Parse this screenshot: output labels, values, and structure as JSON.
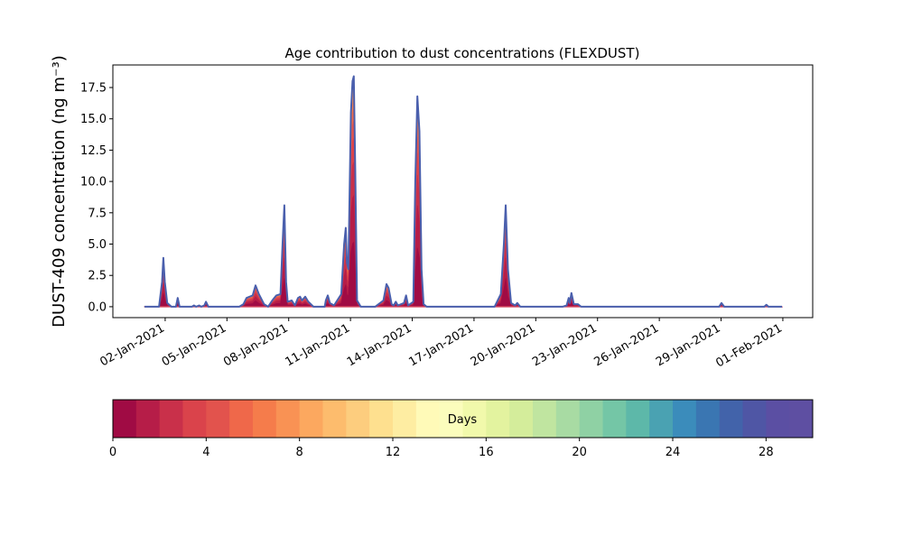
{
  "chart_data": {
    "type": "area",
    "stacked": true,
    "title": "Age contribution to dust concentrations (FLEXDUST)",
    "ylabel": "DUST-409 concentration (ng m⁻³)",
    "xlabel": "",
    "x_units": "days since 01-Jan-2021",
    "xlim": [
      -1.54,
      32.45
    ],
    "ylim": [
      -0.87,
      19.3
    ],
    "yticks": [
      0.0,
      2.5,
      5.0,
      7.5,
      10.0,
      12.5,
      15.0,
      17.5
    ],
    "ytick_labels": [
      "0.0",
      "2.5",
      "5.0",
      "7.5",
      "10.0",
      "12.5",
      "15.0",
      "17.5"
    ],
    "xticks": [
      1,
      4,
      7,
      10,
      13,
      16,
      19,
      22,
      25,
      28,
      31
    ],
    "xtick_labels": [
      "02-Jan-2021",
      "05-Jan-2021",
      "08-Jan-2021",
      "11-Jan-2021",
      "14-Jan-2021",
      "17-Jan-2021",
      "20-Jan-2021",
      "23-Jan-2021",
      "26-Jan-2021",
      "29-Jan-2021",
      "01-Feb-2021"
    ],
    "total": [
      [
        0,
        0
      ],
      [
        0.7,
        0
      ],
      [
        0.85,
        2.0
      ],
      [
        0.91,
        3.9
      ],
      [
        0.98,
        2.0
      ],
      [
        1.1,
        0.3
      ],
      [
        1.3,
        0
      ],
      [
        1.52,
        0
      ],
      [
        1.61,
        0.7
      ],
      [
        1.7,
        0
      ],
      [
        2.3,
        0
      ],
      [
        2.4,
        0.1
      ],
      [
        2.5,
        0
      ],
      [
        2.65,
        0.1
      ],
      [
        2.75,
        0
      ],
      [
        2.9,
        0.1
      ],
      [
        2.98,
        0.4
      ],
      [
        3.1,
        0
      ],
      [
        4.6,
        0
      ],
      [
        4.8,
        0.2
      ],
      [
        4.95,
        0.7
      ],
      [
        5.1,
        0.8
      ],
      [
        5.25,
        0.9
      ],
      [
        5.39,
        1.7
      ],
      [
        5.55,
        1.0
      ],
      [
        5.8,
        0.2
      ],
      [
        6.0,
        0
      ],
      [
        6.2,
        0.5
      ],
      [
        6.4,
        0.9
      ],
      [
        6.6,
        1.0
      ],
      [
        6.7,
        5.0
      ],
      [
        6.79,
        8.1
      ],
      [
        6.87,
        2.0
      ],
      [
        6.95,
        0.4
      ],
      [
        7.15,
        0.5
      ],
      [
        7.3,
        0.1
      ],
      [
        7.45,
        0.7
      ],
      [
        7.55,
        0.8
      ],
      [
        7.65,
        0.5
      ],
      [
        7.8,
        0.8
      ],
      [
        7.95,
        0.4
      ],
      [
        8.2,
        0
      ],
      [
        8.75,
        0
      ],
      [
        8.8,
        0.5
      ],
      [
        8.9,
        0.9
      ],
      [
        9.0,
        0.3
      ],
      [
        9.2,
        0.1
      ],
      [
        9.55,
        1.0
      ],
      [
        9.69,
        5.0
      ],
      [
        9.77,
        6.3
      ],
      [
        9.83,
        3.5
      ],
      [
        9.9,
        3.0
      ],
      [
        10.02,
        15.5
      ],
      [
        10.1,
        18.0
      ],
      [
        10.16,
        18.4
      ],
      [
        10.23,
        11.0
      ],
      [
        10.32,
        0.5
      ],
      [
        10.5,
        0
      ],
      [
        11.2,
        0
      ],
      [
        11.6,
        0.5
      ],
      [
        11.75,
        1.8
      ],
      [
        11.85,
        1.5
      ],
      [
        12.0,
        0.2
      ],
      [
        12.1,
        0.1
      ],
      [
        12.2,
        0.4
      ],
      [
        12.3,
        0.1
      ],
      [
        12.6,
        0.3
      ],
      [
        12.7,
        0.9
      ],
      [
        12.8,
        0.1
      ],
      [
        13.05,
        0.4
      ],
      [
        13.15,
        10
      ],
      [
        13.25,
        16.8
      ],
      [
        13.35,
        14
      ],
      [
        13.45,
        3
      ],
      [
        13.55,
        0.2
      ],
      [
        13.7,
        0
      ],
      [
        17.0,
        0
      ],
      [
        17.3,
        1.0
      ],
      [
        17.45,
        5
      ],
      [
        17.54,
        8.1
      ],
      [
        17.65,
        3
      ],
      [
        17.8,
        0.3
      ],
      [
        18.0,
        0.1
      ],
      [
        18.1,
        0.3
      ],
      [
        18.25,
        0
      ],
      [
        20.3,
        0
      ],
      [
        20.5,
        0.1
      ],
      [
        20.6,
        0.7
      ],
      [
        20.65,
        0.3
      ],
      [
        20.73,
        1.1
      ],
      [
        20.85,
        0.2
      ],
      [
        21.05,
        0.2
      ],
      [
        21.2,
        0
      ],
      [
        27.9,
        0
      ],
      [
        28.02,
        0.3
      ],
      [
        28.15,
        0
      ],
      [
        30.1,
        0
      ],
      [
        30.2,
        0.15
      ],
      [
        30.3,
        0
      ],
      [
        30.96,
        0
      ]
    ],
    "colorbar": {
      "label": "Days",
      "range": [
        0,
        30
      ],
      "ticks": [
        0,
        4,
        8,
        12,
        16,
        20,
        24,
        28
      ],
      "tick_labels": [
        "0",
        "4",
        "8",
        "12",
        "16",
        "20",
        "24",
        "28"
      ],
      "colors": [
        "#a00b44",
        "#b61d48",
        "#c9304a",
        "#da434b",
        "#e2534d",
        "#ef684a",
        "#f57c4b",
        "#f99254",
        "#fca85f",
        "#fdbc6d",
        "#fdcd7e",
        "#fee08f",
        "#feeda2",
        "#fffab8",
        "#fbfdbc",
        "#f1f9ab",
        "#e3f39f",
        "#d4ed9b",
        "#c0e5a0",
        "#a8dba3",
        "#8fd1a4",
        "#74c6a6",
        "#5db8a9",
        "#4aa2b2",
        "#3b8cbb",
        "#3a76b2",
        "#4263aa",
        "#4f56a5",
        "#5b4fa3",
        "#5e4fa2"
      ]
    },
    "outline_color": "#4a5fad"
  }
}
